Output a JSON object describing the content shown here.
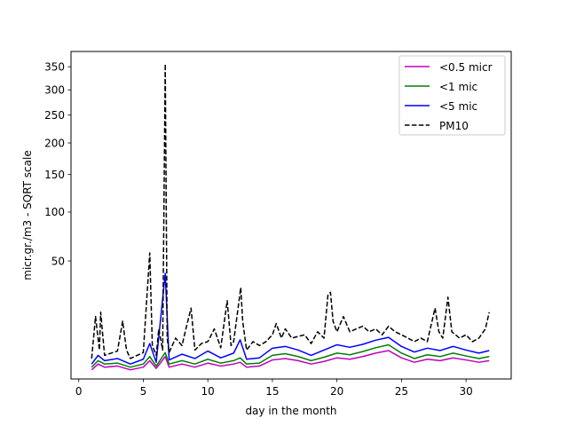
{
  "chart_data": {
    "type": "line",
    "title": "",
    "xlabel": "day in the month",
    "ylabel": "micr.gr./m3 - SQRT scale",
    "y_scale": "sqrt",
    "xlim": [
      -0.6,
      33.5
    ],
    "ylim": [
      0,
      385
    ],
    "x_ticks": [
      0,
      5,
      10,
      15,
      20,
      25,
      30
    ],
    "y_ticks": [
      50,
      100,
      150,
      200,
      250,
      300,
      350
    ],
    "legend_position": "top-right",
    "grid": false,
    "series": [
      {
        "name": "<0.5 micr",
        "color": "#bf00bf",
        "style": "solid",
        "points": [
          [
            1.0,
            0.3
          ],
          [
            1.5,
            0.8
          ],
          [
            2.0,
            0.5
          ],
          [
            3.0,
            0.6
          ],
          [
            4.0,
            0.3
          ],
          [
            5.0,
            0.5
          ],
          [
            5.5,
            1.2
          ],
          [
            6.0,
            0.4
          ],
          [
            6.7,
            1.8
          ],
          [
            7.0,
            0.5
          ],
          [
            8.0,
            0.8
          ],
          [
            9.0,
            0.5
          ],
          [
            10.0,
            0.9
          ],
          [
            11.0,
            0.6
          ],
          [
            12.0,
            0.8
          ],
          [
            12.5,
            1.0
          ],
          [
            13.0,
            0.5
          ],
          [
            14.0,
            0.6
          ],
          [
            15.0,
            1.3
          ],
          [
            16.0,
            1.5
          ],
          [
            17.0,
            1.2
          ],
          [
            18.0,
            0.8
          ],
          [
            19.0,
            1.1
          ],
          [
            20.0,
            1.6
          ],
          [
            21.0,
            1.4
          ],
          [
            22.0,
            1.8
          ],
          [
            23.0,
            2.4
          ],
          [
            24.0,
            2.9
          ],
          [
            25.0,
            1.6
          ],
          [
            26.0,
            1.0
          ],
          [
            27.0,
            1.4
          ],
          [
            28.0,
            1.2
          ],
          [
            29.0,
            1.6
          ],
          [
            30.0,
            1.3
          ],
          [
            31.0,
            1.0
          ],
          [
            31.8,
            1.2
          ]
        ]
      },
      {
        "name": "<1 mic",
        "color": "#008000",
        "style": "solid",
        "points": [
          [
            1.0,
            0.5
          ],
          [
            1.5,
            1.2
          ],
          [
            2.0,
            0.8
          ],
          [
            3.0,
            0.9
          ],
          [
            4.0,
            0.5
          ],
          [
            5.0,
            0.8
          ],
          [
            5.5,
            1.8
          ],
          [
            6.0,
            0.6
          ],
          [
            6.7,
            2.5
          ],
          [
            7.0,
            0.8
          ],
          [
            8.0,
            1.2
          ],
          [
            9.0,
            0.8
          ],
          [
            10.0,
            1.4
          ],
          [
            11.0,
            0.9
          ],
          [
            12.0,
            1.2
          ],
          [
            12.5,
            1.6
          ],
          [
            13.0,
            0.8
          ],
          [
            14.0,
            0.9
          ],
          [
            15.0,
            2.0
          ],
          [
            16.0,
            2.3
          ],
          [
            17.0,
            1.8
          ],
          [
            18.0,
            1.2
          ],
          [
            19.0,
            1.7
          ],
          [
            20.0,
            2.4
          ],
          [
            21.0,
            2.1
          ],
          [
            22.0,
            2.7
          ],
          [
            23.0,
            3.5
          ],
          [
            24.0,
            4.2
          ],
          [
            25.0,
            2.4
          ],
          [
            26.0,
            1.5
          ],
          [
            27.0,
            2.1
          ],
          [
            28.0,
            1.8
          ],
          [
            29.0,
            2.4
          ],
          [
            30.0,
            1.9
          ],
          [
            31.0,
            1.5
          ],
          [
            31.8,
            1.8
          ]
        ]
      },
      {
        "name": "<5 mic",
        "color": "#0000ff",
        "style": "solid",
        "points": [
          [
            1.0,
            0.8
          ],
          [
            1.5,
            2.0
          ],
          [
            2.0,
            1.2
          ],
          [
            3.0,
            1.5
          ],
          [
            4.0,
            0.8
          ],
          [
            5.0,
            1.4
          ],
          [
            5.5,
            4.5
          ],
          [
            6.0,
            1.0
          ],
          [
            6.7,
            40.0
          ],
          [
            7.0,
            1.3
          ],
          [
            8.0,
            2.2
          ],
          [
            9.0,
            1.5
          ],
          [
            10.0,
            2.8
          ],
          [
            11.0,
            1.6
          ],
          [
            12.0,
            2.4
          ],
          [
            12.5,
            5.5
          ],
          [
            13.0,
            1.4
          ],
          [
            14.0,
            1.6
          ],
          [
            15.0,
            3.4
          ],
          [
            16.0,
            3.8
          ],
          [
            17.0,
            3.0
          ],
          [
            18.0,
            2.0
          ],
          [
            19.0,
            3.0
          ],
          [
            20.0,
            4.2
          ],
          [
            21.0,
            3.6
          ],
          [
            22.0,
            4.3
          ],
          [
            23.0,
            5.4
          ],
          [
            24.0,
            6.2
          ],
          [
            25.0,
            3.8
          ],
          [
            26.0,
            2.6
          ],
          [
            27.0,
            3.4
          ],
          [
            28.0,
            2.9
          ],
          [
            29.0,
            3.8
          ],
          [
            30.0,
            3.0
          ],
          [
            31.0,
            2.4
          ],
          [
            31.8,
            2.9
          ]
        ]
      },
      {
        "name": "PM10",
        "color": "#000000",
        "style": "dashed",
        "points": [
          [
            1.0,
            1.5
          ],
          [
            1.3,
            14.0
          ],
          [
            1.6,
            3.0
          ],
          [
            1.7,
            16.0
          ],
          [
            2.0,
            2.0
          ],
          [
            3.0,
            2.8
          ],
          [
            3.4,
            12.0
          ],
          [
            3.7,
            3.0
          ],
          [
            4.0,
            1.5
          ],
          [
            5.0,
            2.5
          ],
          [
            5.5,
            57.0
          ],
          [
            5.7,
            4.0
          ],
          [
            6.0,
            2.0
          ],
          [
            6.2,
            9.0
          ],
          [
            6.5,
            3.0
          ],
          [
            6.7,
            356.0
          ],
          [
            6.85,
            6.0
          ],
          [
            7.0,
            2.5
          ],
          [
            7.5,
            6.0
          ],
          [
            8.0,
            4.0
          ],
          [
            8.3,
            9.0
          ],
          [
            8.7,
            18.0
          ],
          [
            9.0,
            3.0
          ],
          [
            9.5,
            4.5
          ],
          [
            10.0,
            5.0
          ],
          [
            10.5,
            9.0
          ],
          [
            11.0,
            3.5
          ],
          [
            11.5,
            22.0
          ],
          [
            11.8,
            4.0
          ],
          [
            12.0,
            5.0
          ],
          [
            12.4,
            21.0
          ],
          [
            12.55,
            30.0
          ],
          [
            12.7,
            12.0
          ],
          [
            13.0,
            3.0
          ],
          [
            13.5,
            5.0
          ],
          [
            14.0,
            4.0
          ],
          [
            14.5,
            5.0
          ],
          [
            15.0,
            7.0
          ],
          [
            15.3,
            11.0
          ],
          [
            15.7,
            6.0
          ],
          [
            16.0,
            9.0
          ],
          [
            16.5,
            6.0
          ],
          [
            17.0,
            6.5
          ],
          [
            17.5,
            7.0
          ],
          [
            18.0,
            4.5
          ],
          [
            18.5,
            8.0
          ],
          [
            19.0,
            6.0
          ],
          [
            19.3,
            25.0
          ],
          [
            19.5,
            27.0
          ],
          [
            19.7,
            12.0
          ],
          [
            20.0,
            8.0
          ],
          [
            20.5,
            14.0
          ],
          [
            21.0,
            8.0
          ],
          [
            21.5,
            9.0
          ],
          [
            22.0,
            10.0
          ],
          [
            22.5,
            8.0
          ],
          [
            23.0,
            9.0
          ],
          [
            23.5,
            7.0
          ],
          [
            24.0,
            10.0
          ],
          [
            24.5,
            8.0
          ],
          [
            25.0,
            7.0
          ],
          [
            25.5,
            6.0
          ],
          [
            26.0,
            5.0
          ],
          [
            26.5,
            6.0
          ],
          [
            27.0,
            5.0
          ],
          [
            27.6,
            18.0
          ],
          [
            27.9,
            8.0
          ],
          [
            28.2,
            6.0
          ],
          [
            28.6,
            24.0
          ],
          [
            28.9,
            8.0
          ],
          [
            29.5,
            6.0
          ],
          [
            30.0,
            7.0
          ],
          [
            30.5,
            5.0
          ],
          [
            31.0,
            6.0
          ],
          [
            31.5,
            9.0
          ],
          [
            31.8,
            16.0
          ]
        ]
      }
    ]
  }
}
